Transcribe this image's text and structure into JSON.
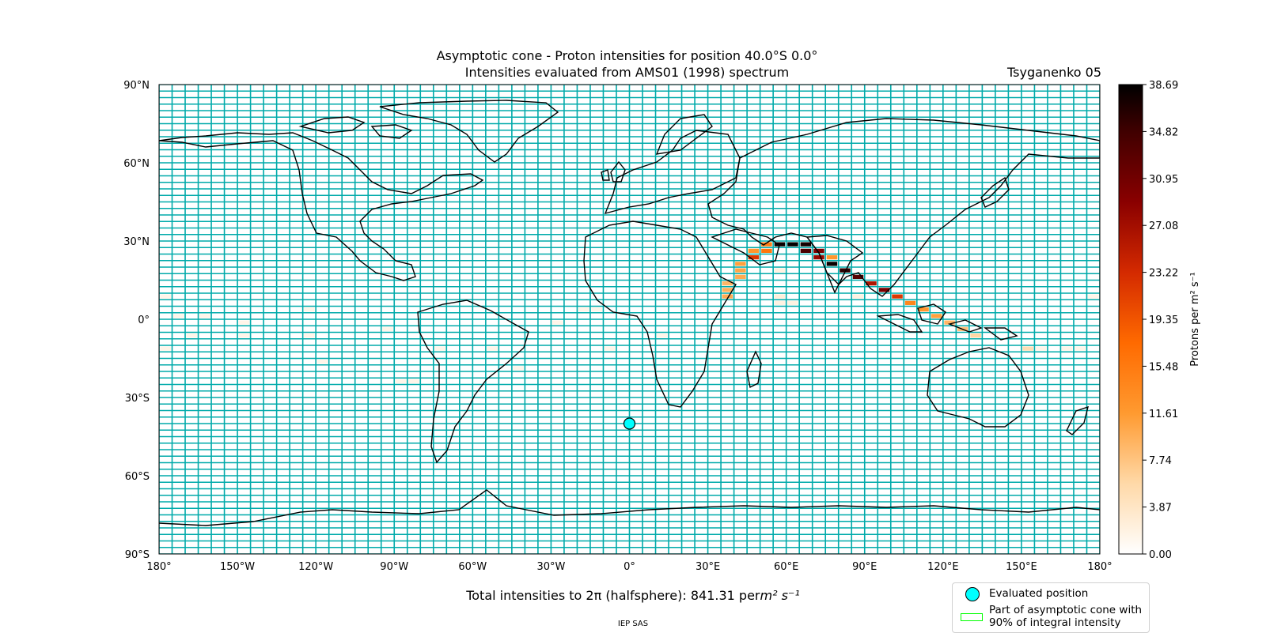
{
  "titles": {
    "line1": "Asymptotic cone - Proton intensities for position 40.0°S 0.0°",
    "line2": "Intensities evaluated from AMS01 (1998) spectrum",
    "model": "Tsyganenko 05"
  },
  "map": {
    "projection": "PlateCarree",
    "lon_range": [
      -180,
      180
    ],
    "lat_range": [
      -90,
      90
    ],
    "grid_color": "#00aaaa",
    "lon_labels": [
      "180°",
      "150°W",
      "120°W",
      "90°W",
      "60°W",
      "30°W",
      "0°",
      "30°E",
      "60°E",
      "90°E",
      "120°E",
      "150°E",
      "180°"
    ],
    "lat_labels": [
      "90°N",
      "60°N",
      "30°N",
      "0°",
      "30°S",
      "60°S",
      "90°S"
    ],
    "evaluated_position": {
      "lat": -40.0,
      "lon": 0.0,
      "color": "#00ffff"
    }
  },
  "colorbar": {
    "label": "Protons per m² s⁻¹",
    "min": 0.0,
    "max": 38.69,
    "ticks": [
      "38.69",
      "34.82",
      "30.95",
      "27.08",
      "23.22",
      "19.35",
      "15.48",
      "11.61",
      "7.74",
      "3.87",
      "0.00"
    ],
    "colormap": "gist_heat_r"
  },
  "chart_data": {
    "type": "heatmap",
    "cell_size_deg": [
      5,
      2.5
    ],
    "cells": [
      {
        "lon": 57.5,
        "lat": 28.75,
        "v": 38.0
      },
      {
        "lon": 62.5,
        "lat": 28.75,
        "v": 38.5
      },
      {
        "lon": 67.5,
        "lat": 28.75,
        "v": 37.5
      },
      {
        "lon": 52.5,
        "lat": 28.75,
        "v": 15.0
      },
      {
        "lon": 47.5,
        "lat": 26.25,
        "v": 12.0
      },
      {
        "lon": 52.5,
        "lat": 26.25,
        "v": 16.0
      },
      {
        "lon": 72.5,
        "lat": 26.25,
        "v": 30.0
      },
      {
        "lon": 67.5,
        "lat": 26.25,
        "v": 34.0
      },
      {
        "lon": 47.5,
        "lat": 23.75,
        "v": 22.0
      },
      {
        "lon": 72.5,
        "lat": 23.75,
        "v": 28.0
      },
      {
        "lon": 77.5,
        "lat": 23.75,
        "v": 12.0
      },
      {
        "lon": 42.5,
        "lat": 21.25,
        "v": 11.0
      },
      {
        "lon": 77.5,
        "lat": 21.25,
        "v": 38.0
      },
      {
        "lon": 42.5,
        "lat": 18.75,
        "v": 10.5
      },
      {
        "lon": 57.5,
        "lat": 18.75,
        "v": 2.0
      },
      {
        "lon": 82.5,
        "lat": 18.75,
        "v": 36.0
      },
      {
        "lon": 42.5,
        "lat": 16.25,
        "v": 10.0
      },
      {
        "lon": 87.5,
        "lat": 16.25,
        "v": 33.0
      },
      {
        "lon": 37.5,
        "lat": 13.75,
        "v": 9.0
      },
      {
        "lon": 92.5,
        "lat": 13.75,
        "v": 26.0
      },
      {
        "lon": 37.5,
        "lat": 11.25,
        "v": 9.5
      },
      {
        "lon": 97.5,
        "lat": 11.25,
        "v": 30.0
      },
      {
        "lon": 37.5,
        "lat": 8.75,
        "v": 10.0
      },
      {
        "lon": 57.5,
        "lat": 8.75,
        "v": 2.5
      },
      {
        "lon": 87.5,
        "lat": 8.75,
        "v": 2.0
      },
      {
        "lon": 102.5,
        "lat": 8.75,
        "v": 22.0
      },
      {
        "lon": 107.5,
        "lat": 6.25,
        "v": 14.0
      },
      {
        "lon": 57.5,
        "lat": 6.25,
        "v": 2.0
      },
      {
        "lon": 62.5,
        "lat": 6.25,
        "v": 2.0
      },
      {
        "lon": 112.5,
        "lat": 3.75,
        "v": 12.0
      },
      {
        "lon": 117.5,
        "lat": 1.25,
        "v": 11.0
      },
      {
        "lon": 122.5,
        "lat": -1.25,
        "v": 9.0
      },
      {
        "lon": 127.5,
        "lat": -3.75,
        "v": 8.0
      },
      {
        "lon": 132.5,
        "lat": -6.25,
        "v": 6.0
      },
      {
        "lon": -177.5,
        "lat": 8.75,
        "v": 1.5
      },
      {
        "lon": 177.5,
        "lat": 8.75,
        "v": 1.5
      },
      {
        "lon": -172.5,
        "lat": 1.25,
        "v": 1.5
      },
      {
        "lon": -162.5,
        "lat": 1.25,
        "v": 1.5
      },
      {
        "lon": -167.5,
        "lat": -6.25,
        "v": 1.5
      },
      {
        "lon": -177.5,
        "lat": -11.25,
        "v": 1.5
      },
      {
        "lon": -147.5,
        "lat": -1.25,
        "v": 1.5
      },
      {
        "lon": -147.5,
        "lat": -6.25,
        "v": 1.5
      },
      {
        "lon": -122.5,
        "lat": 3.75,
        "v": 1.5
      },
      {
        "lon": -122.5,
        "lat": -6.25,
        "v": 1.5
      },
      {
        "lon": -117.5,
        "lat": -16.25,
        "v": 1.5
      },
      {
        "lon": -92.5,
        "lat": -3.75,
        "v": 1.5
      },
      {
        "lon": -87.5,
        "lat": -23.75,
        "v": 1.5
      },
      {
        "lon": -82.5,
        "lat": -23.75,
        "v": 1.5
      },
      {
        "lon": -72.5,
        "lat": -11.25,
        "v": 1.5
      },
      {
        "lon": -52.5,
        "lat": -11.25,
        "v": 1.5
      },
      {
        "lon": -42.5,
        "lat": -18.75,
        "v": 1.5
      },
      {
        "lon": -27.5,
        "lat": -1.25,
        "v": 1.5
      },
      {
        "lon": -17.5,
        "lat": 3.75,
        "v": 1.5
      },
      {
        "lon": -12.5,
        "lat": 3.75,
        "v": 1.5
      },
      {
        "lon": -7.5,
        "lat": -11.25,
        "v": 1.5
      },
      {
        "lon": 12.5,
        "lat": -6.25,
        "v": 1.5
      },
      {
        "lon": 152.5,
        "lat": -11.25,
        "v": 5.0
      },
      {
        "lon": 157.5,
        "lat": -11.25,
        "v": 1.5
      },
      {
        "lon": 167.5,
        "lat": -11.25,
        "v": 1.5
      },
      {
        "lon": 172.5,
        "lat": -11.25,
        "v": 1.5
      }
    ]
  },
  "footer": {
    "total_prefix": "Total intensities to 2π (halfsphere): 841.31 per ",
    "total_unit": "m² s⁻¹",
    "credit": "IEP SAS"
  },
  "legend": {
    "items": [
      {
        "label": "Evaluated position",
        "symbol_color": "#00ffff"
      },
      {
        "label": "Part of asymptotic cone with 90% of integral intensity",
        "line1": "Part of asymptotic cone with",
        "line2": "90% of integral intensity",
        "symbol_color": "#00ff00"
      }
    ]
  }
}
